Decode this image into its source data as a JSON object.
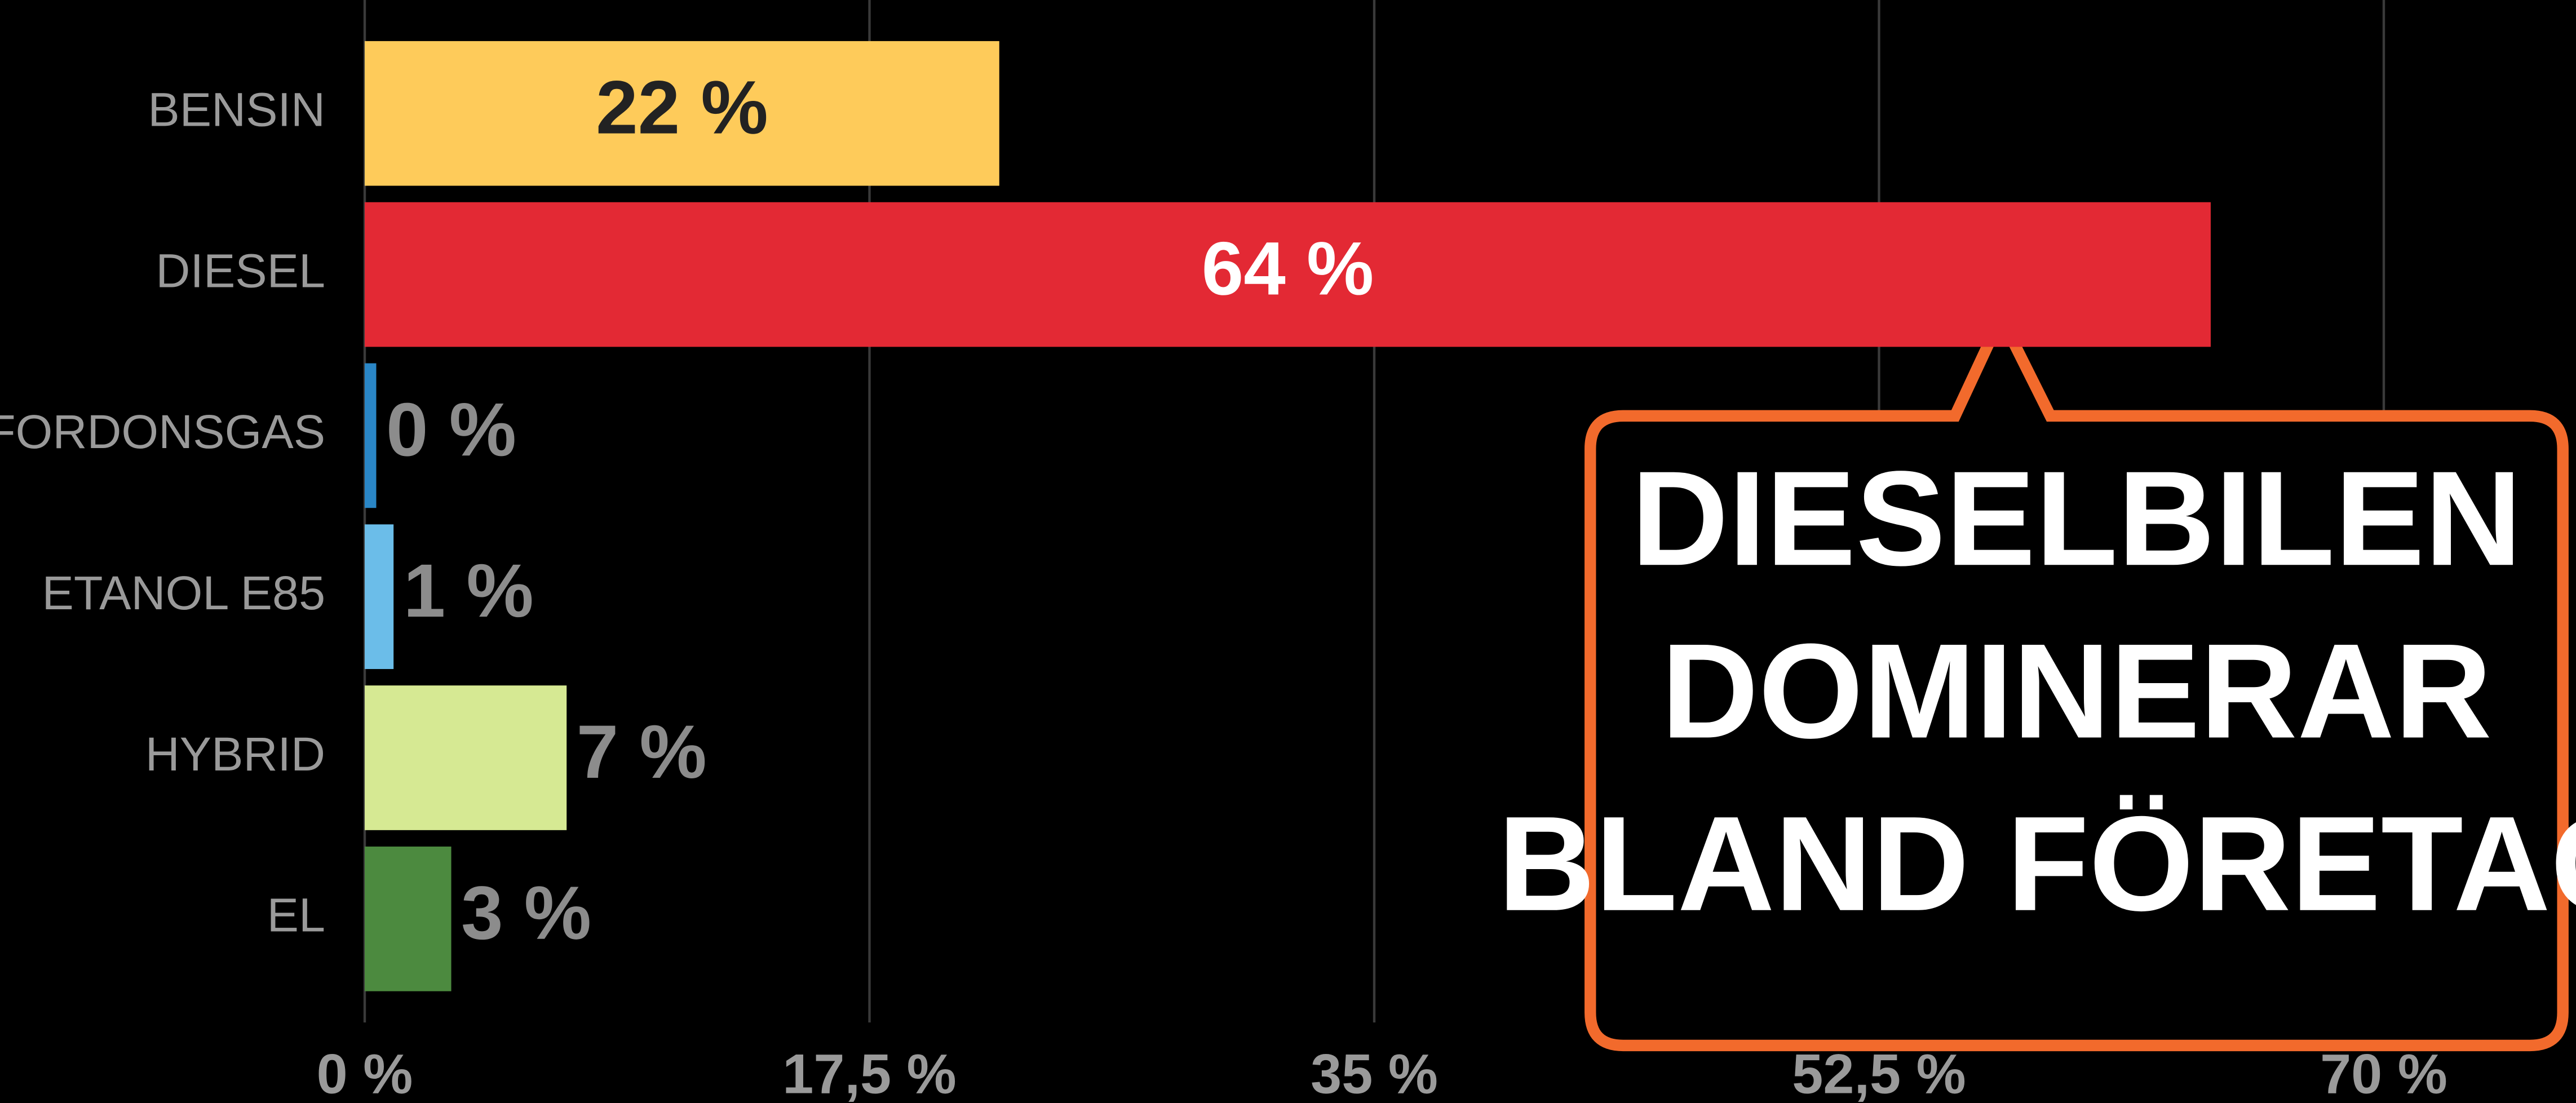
{
  "chart_data": {
    "type": "bar",
    "orientation": "horizontal",
    "categories": [
      "BENSIN",
      "DIESEL",
      "FORDONSGAS",
      "ETANOL E85",
      "HYBRID",
      "EL"
    ],
    "values": [
      22,
      64,
      0.4,
      1,
      7,
      3
    ],
    "value_labels": [
      "22 %",
      "64 %",
      "0 %",
      "1 %",
      "7 %",
      "3 %"
    ],
    "colors": [
      "#fecb5a",
      "#e32934",
      "#2a86c6",
      "#6bbde9",
      "#d6e993",
      "#4c8a3f"
    ],
    "xlim": [
      0,
      70
    ],
    "xticks": [
      {
        "value": 0,
        "label": "0 %"
      },
      {
        "value": 17.5,
        "label": "17,5 %"
      },
      {
        "value": 35,
        "label": "35 %"
      },
      {
        "value": 52.5,
        "label": "52,5 %"
      },
      {
        "value": 70,
        "label": "70 %"
      }
    ],
    "grid": true,
    "annotation": [
      "DIESELBILEN",
      "DOMINERAR",
      "BLAND FÖRETAG"
    ]
  }
}
